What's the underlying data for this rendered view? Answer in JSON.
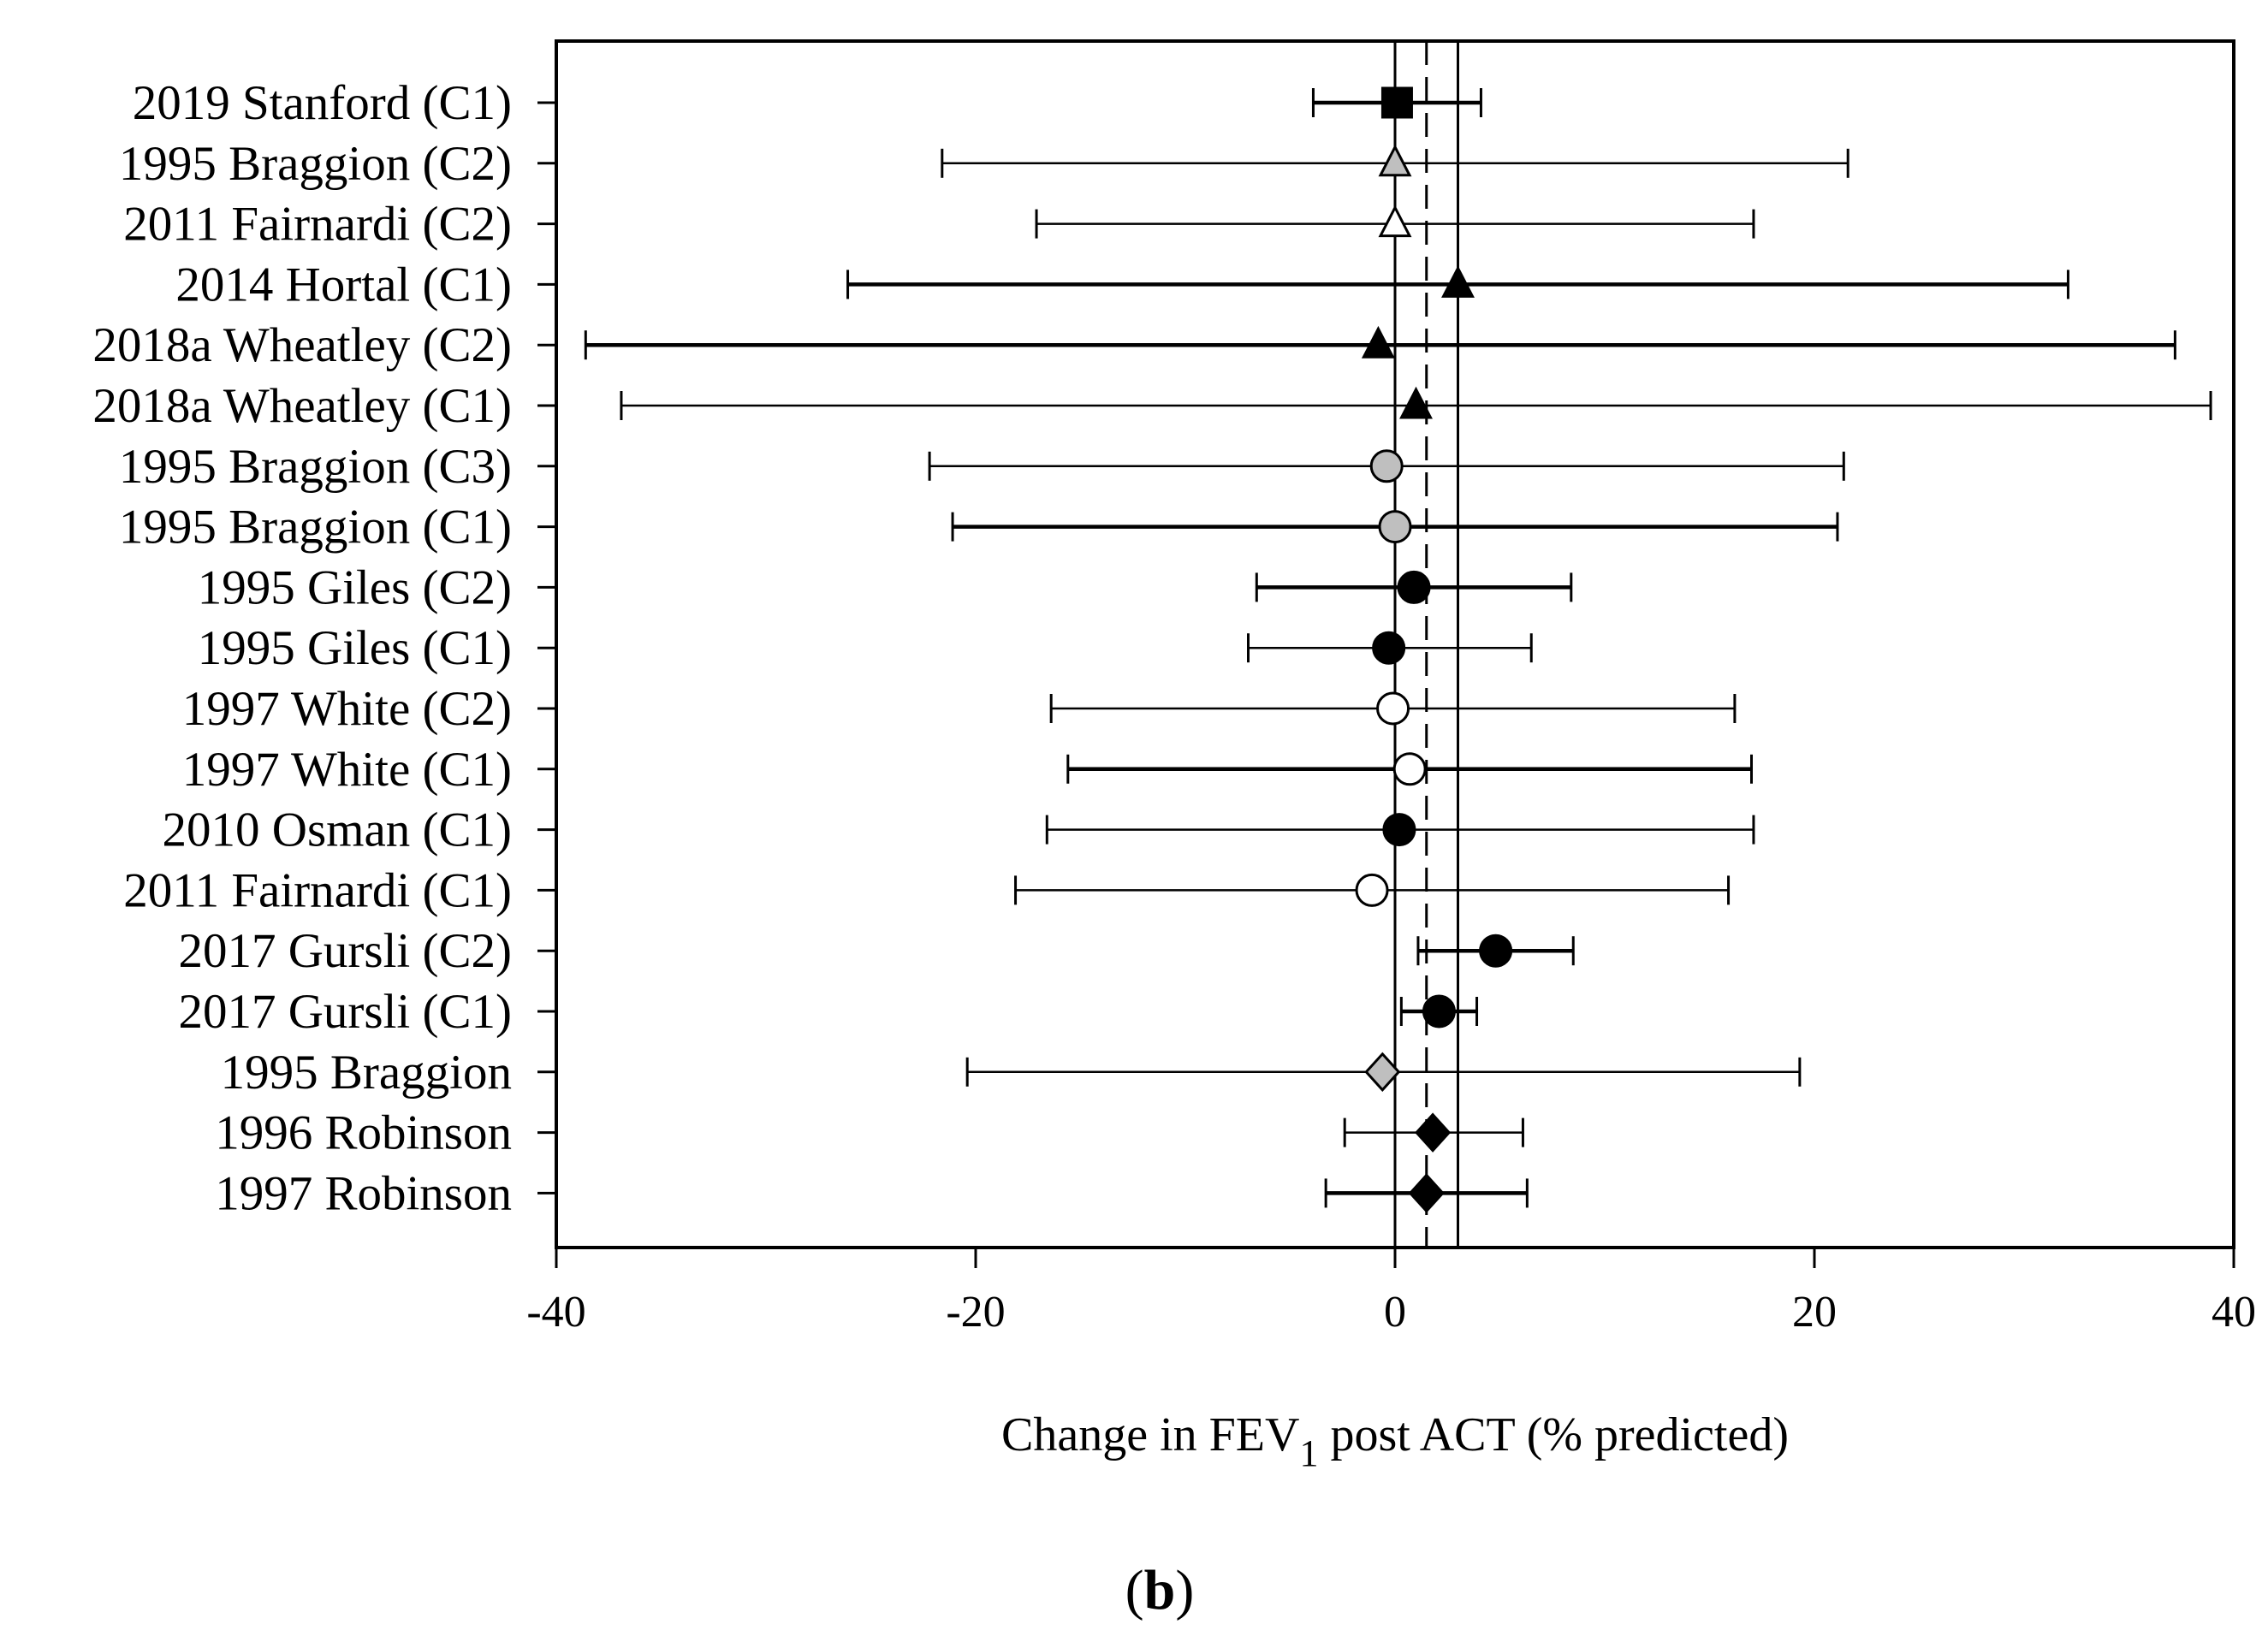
{
  "chart_data": {
    "type": "forest",
    "xlabel_main": "Change in FEV",
    "xlabel_sub": "1",
    "xlabel_rest": " post ACT (% predicted)",
    "xlim": [
      -40,
      40
    ],
    "xticks": [
      "-40",
      "-20",
      "0",
      "20",
      "40"
    ],
    "xtick_values": [
      -40,
      -20,
      0,
      20,
      40
    ],
    "reference_lines": [
      {
        "x": 0,
        "style": "solid"
      },
      {
        "x": 1.5,
        "style": "dashed"
      },
      {
        "x": 3,
        "style": "solid"
      }
    ],
    "panel_label_open": "(",
    "panel_label_letter": "b",
    "panel_label_close": ")",
    "studies": [
      {
        "label": "2019 Stanford (C1)",
        "mean": 0.1,
        "lower": -3.9,
        "upper": 4.1,
        "marker": "square",
        "fill": "#000000",
        "weight": "bold"
      },
      {
        "label": "1995 Braggion (C2)",
        "mean": 0.0,
        "lower": -21.6,
        "upper": 21.6,
        "marker": "triangle",
        "fill": "#bfbfbf",
        "weight": "thin"
      },
      {
        "label": "2011 Fairnardi (C2)",
        "mean": 0.0,
        "lower": -17.1,
        "upper": 17.1,
        "marker": "triangle",
        "fill": "#ffffff",
        "weight": "thin"
      },
      {
        "label": "2014 Hortal (C1)",
        "mean": 3.0,
        "lower": -26.1,
        "upper": 32.1,
        "marker": "triangle",
        "fill": "#000000",
        "weight": "bold"
      },
      {
        "label": "2018a Wheatley (C2)",
        "mean": -0.8,
        "lower": -38.6,
        "upper": 37.2,
        "marker": "triangle",
        "fill": "#000000",
        "weight": "bold"
      },
      {
        "label": "2018a Wheatley (C1)",
        "mean": 1.0,
        "lower": -36.9,
        "upper": 38.9,
        "marker": "triangle",
        "fill": "#000000",
        "weight": "thin"
      },
      {
        "label": "1995 Braggion (C3)",
        "mean": -0.4,
        "lower": -22.2,
        "upper": 21.4,
        "marker": "circle",
        "fill": "#bfbfbf",
        "weight": "thin"
      },
      {
        "label": "1995 Braggion (C1)",
        "mean": 0.0,
        "lower": -21.1,
        "upper": 21.1,
        "marker": "circle",
        "fill": "#bfbfbf",
        "weight": "bold"
      },
      {
        "label": "1995 Giles (C2)",
        "mean": 0.9,
        "lower": -6.6,
        "upper": 8.4,
        "marker": "circle",
        "fill": "#000000",
        "weight": "bold"
      },
      {
        "label": "1995 Giles (C1)",
        "mean": -0.3,
        "lower": -7.0,
        "upper": 6.5,
        "marker": "circle",
        "fill": "#000000",
        "weight": "thin"
      },
      {
        "label": "1997 White (C2)",
        "mean": -0.1,
        "lower": -16.4,
        "upper": 16.2,
        "marker": "circle",
        "fill": "#ffffff",
        "weight": "thin"
      },
      {
        "label": "1997 White (C1)",
        "mean": 0.7,
        "lower": -15.6,
        "upper": 17.0,
        "marker": "circle",
        "fill": "#ffffff",
        "weight": "bold"
      },
      {
        "label": "2010 Osman (C1)",
        "mean": 0.2,
        "lower": -16.6,
        "upper": 17.1,
        "marker": "circle",
        "fill": "#000000",
        "weight": "thin"
      },
      {
        "label": "2011 Fairnardi (C1)",
        "mean": -1.1,
        "lower": -18.1,
        "upper": 15.9,
        "marker": "circle",
        "fill": "#ffffff",
        "weight": "thin"
      },
      {
        "label": "2017 Gursli (C2)",
        "mean": 4.8,
        "lower": 1.1,
        "upper": 8.5,
        "marker": "circle",
        "fill": "#000000",
        "weight": "bold"
      },
      {
        "label": "2017 Gursli (C1)",
        "mean": 2.1,
        "lower": 0.3,
        "upper": 3.9,
        "marker": "circle",
        "fill": "#000000",
        "weight": "bold"
      },
      {
        "label": "1995 Braggion",
        "mean": -0.6,
        "lower": -20.4,
        "upper": 19.3,
        "marker": "diamond",
        "fill": "#bfbfbf",
        "weight": "thin"
      },
      {
        "label": "1996 Robinson",
        "mean": 1.8,
        "lower": -2.4,
        "upper": 6.1,
        "marker": "diamond",
        "fill": "#000000",
        "weight": "thin"
      },
      {
        "label": "1997 Robinson",
        "mean": 1.5,
        "lower": -3.3,
        "upper": 6.3,
        "marker": "diamond",
        "fill": "#000000",
        "weight": "bold"
      }
    ]
  }
}
